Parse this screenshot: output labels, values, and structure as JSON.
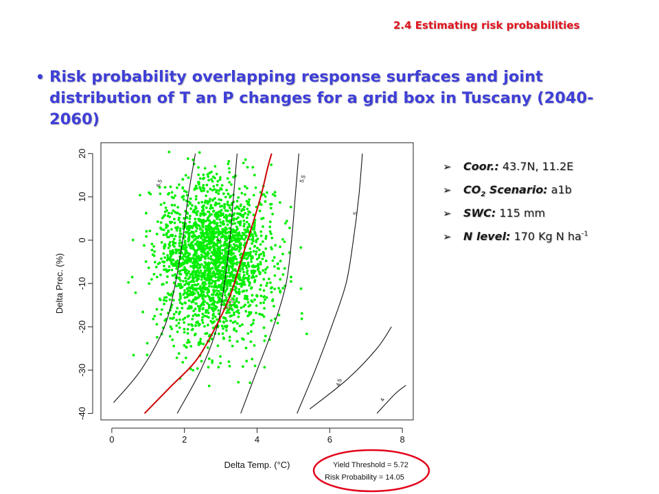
{
  "section_title": "2.4 Estimating risk probabilities",
  "headline": "Risk probability overlapping response surfaces and joint distribution of T an P changes for a grid box in Tuscany (2040-2060)",
  "bullet": "•",
  "info": {
    "arrow": "➢",
    "coor_label": "Coor.:",
    "coor_value": "43.7N, 11.2E",
    "co2_label_main": "CO",
    "co2_sub": "2",
    "co2_label_rest": "Scenario:",
    "co2_value": "a1b",
    "swc_label": "SWC:",
    "swc_value": "115 mm",
    "n_label": "N level:",
    "n_value": "170 Kg N ha",
    "n_sup": "-1"
  },
  "colors": {
    "title_red": "#e0141e",
    "headline_blue": "#3f3fd8",
    "points": "#00ee00",
    "threshold_line": "#cc0000",
    "ellipse": "#e2001a"
  },
  "chart_data": {
    "type": "scatter",
    "xlabel": "Delta Temp. (°C)",
    "ylabel": "Delta Prec. (%)",
    "xlim": [
      -0.3,
      8.3
    ],
    "ylim": [
      -41.5,
      22.5
    ],
    "xticks": [
      0,
      2,
      4,
      6,
      8
    ],
    "yticks": [
      -40,
      -30,
      -20,
      -10,
      0,
      10,
      20
    ],
    "contours": [
      {
        "label": "6.5",
        "points": [
          [
            0.05,
            -37.5
          ],
          [
            0.8,
            -30
          ],
          [
            1.45,
            -20
          ],
          [
            1.75,
            -10
          ],
          [
            1.95,
            0
          ],
          [
            2.1,
            10
          ],
          [
            2.3,
            20
          ]
        ],
        "label_at": [
          1.35,
          13
        ]
      },
      {
        "label": "6",
        "points": [
          [
            1.8,
            -40
          ],
          [
            2.45,
            -30
          ],
          [
            2.9,
            -20
          ],
          [
            3.1,
            -10
          ],
          [
            3.25,
            0
          ],
          [
            3.35,
            10
          ],
          [
            3.45,
            20
          ]
        ],
        "label_at": [
          3.0,
          0
        ]
      },
      {
        "label": "5.5",
        "points": [
          [
            3.55,
            -40
          ],
          [
            4.0,
            -30
          ],
          [
            4.45,
            -20
          ],
          [
            4.8,
            -10
          ],
          [
            4.95,
            0
          ],
          [
            5.05,
            10
          ],
          [
            5.15,
            20
          ]
        ],
        "label_at": [
          5.3,
          14
        ]
      },
      {
        "label": "5",
        "points": [
          [
            5.1,
            -40
          ],
          [
            5.6,
            -30
          ],
          [
            6.05,
            -20
          ],
          [
            6.45,
            -10
          ],
          [
            6.65,
            0
          ],
          [
            6.8,
            10
          ],
          [
            6.9,
            20
          ]
        ],
        "label_at": [
          6.75,
          6
        ]
      },
      {
        "label": "4.5",
        "points": [
          [
            5.45,
            -39
          ],
          [
            6.5,
            -32
          ],
          [
            7.3,
            -25
          ],
          [
            7.7,
            -20
          ]
        ],
        "label_at": [
          6.3,
          -33
        ]
      },
      {
        "label": "4",
        "points": [
          [
            7.3,
            -40
          ],
          [
            7.8,
            -35.5
          ],
          [
            8.1,
            -33.5
          ]
        ],
        "label_at": [
          7.5,
          -37
        ]
      }
    ],
    "threshold_contour": {
      "label": "5.72",
      "points": [
        [
          0.9,
          -40
        ],
        [
          1.6,
          -34
        ],
        [
          2.3,
          -28
        ],
        [
          2.8,
          -21
        ],
        [
          3.25,
          -13
        ],
        [
          3.55,
          -5
        ],
        [
          3.85,
          3
        ],
        [
          4.1,
          10
        ],
        [
          4.3,
          17
        ],
        [
          4.4,
          20
        ]
      ],
      "label_at": [
        3.3,
        -15
      ]
    },
    "scatter": {
      "center_x": 2.8,
      "center_y": -4.5,
      "sd_x": 0.78,
      "sd_y": 9.0,
      "count": 2200,
      "seed": 7
    },
    "annotations": {
      "yield_threshold": "Yield Threshold = 5.72",
      "risk_probability": "Risk Probability = 14.05"
    }
  }
}
